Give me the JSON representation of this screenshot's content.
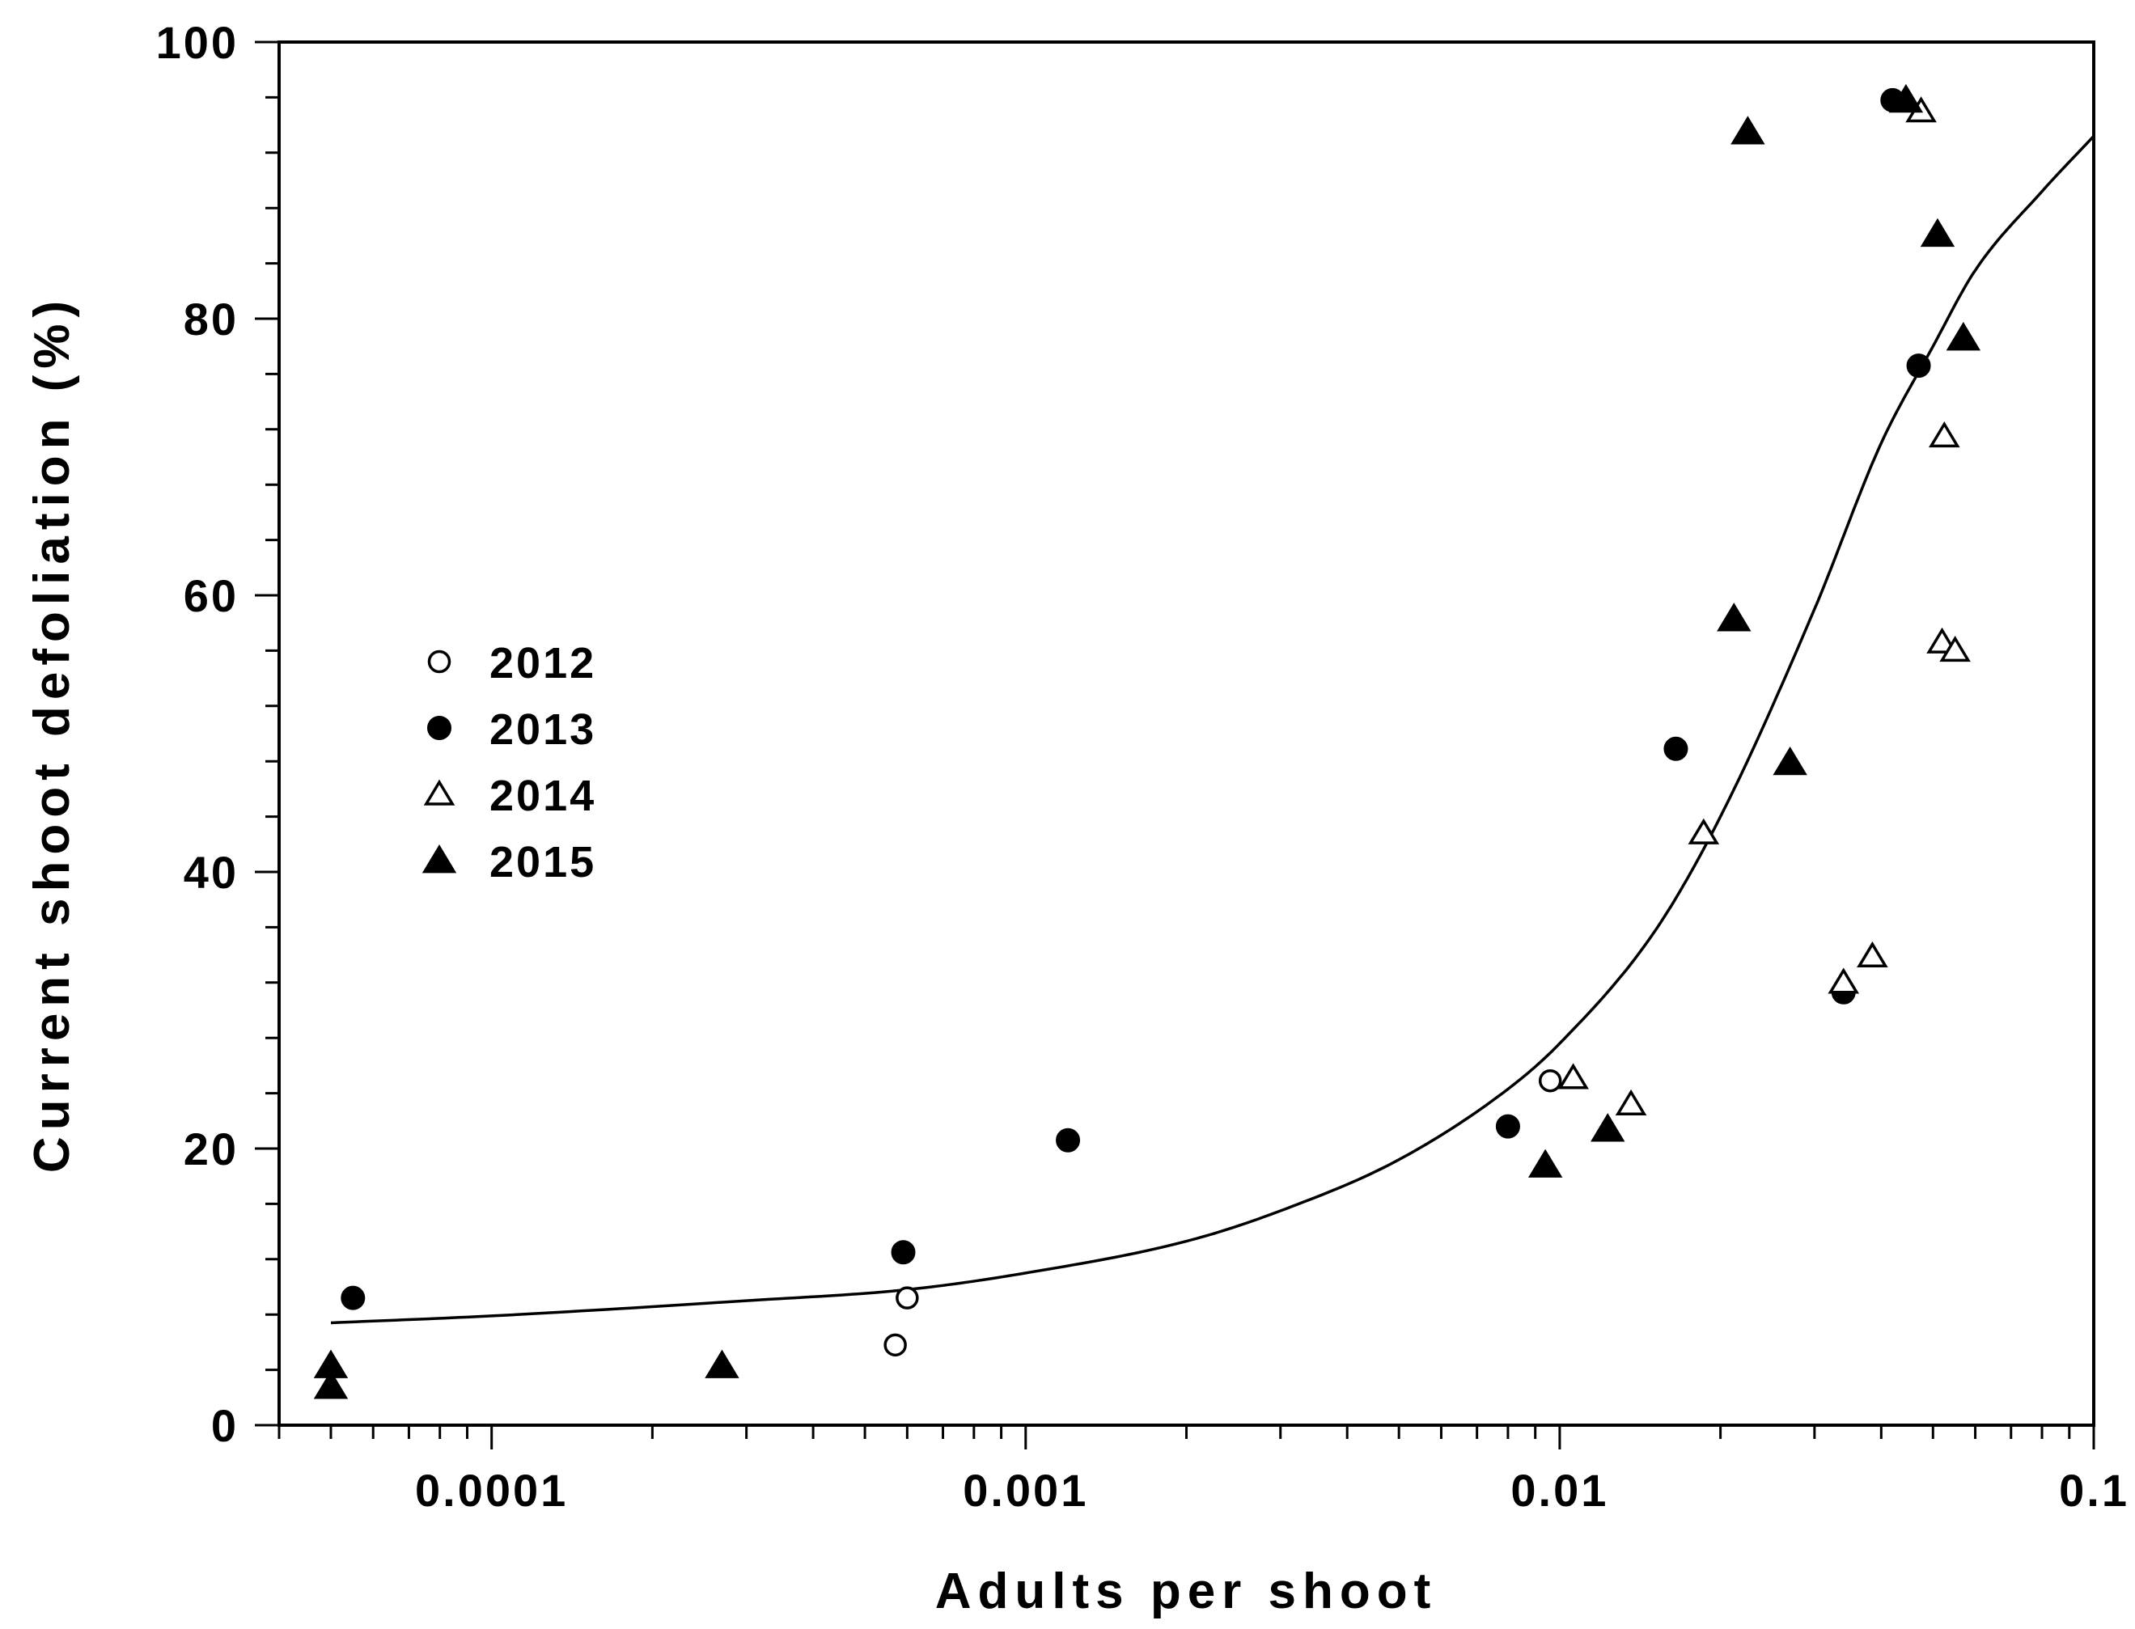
{
  "chart_data": {
    "type": "scatter",
    "title": "",
    "xlabel": "Adults per shoot",
    "ylabel": "Current shoot defoliation (%)",
    "x_scale": "log",
    "xlim": [
      4e-05,
      0.1
    ],
    "ylim": [
      0,
      100
    ],
    "x_ticks": [
      {
        "value": 0.0001,
        "label": "0.0001"
      },
      {
        "value": 0.001,
        "label": "0.001"
      },
      {
        "value": 0.01,
        "label": "0.01"
      },
      {
        "value": 0.1,
        "label": "0.1"
      }
    ],
    "y_ticks": [
      {
        "value": 0,
        "label": "0"
      },
      {
        "value": 20,
        "label": "20"
      },
      {
        "value": 40,
        "label": "40"
      },
      {
        "value": 60,
        "label": "60"
      },
      {
        "value": 80,
        "label": "80"
      },
      {
        "value": 100,
        "label": "100"
      }
    ],
    "grid": false,
    "legend_position": "left-middle",
    "series": [
      {
        "name": "2012",
        "marker": "open-circle",
        "points": [
          [
            0.00057,
            5.8
          ],
          [
            0.0006,
            9.2
          ],
          [
            0.0096,
            24.9
          ]
        ]
      },
      {
        "name": "2013",
        "marker": "filled-circle",
        "points": [
          [
            5.5e-05,
            9.2
          ],
          [
            0.00059,
            12.5
          ],
          [
            0.0012,
            20.6
          ],
          [
            0.008,
            21.6
          ],
          [
            0.0165,
            48.9
          ],
          [
            0.034,
            31.3
          ],
          [
            0.042,
            95.8
          ],
          [
            0.047,
            76.6
          ]
        ]
      },
      {
        "name": "2014",
        "marker": "open-triangle",
        "points": [
          [
            0.0106,
            25.1
          ],
          [
            0.0136,
            23.2
          ],
          [
            0.0186,
            42.8
          ],
          [
            0.034,
            32.0
          ],
          [
            0.0385,
            33.9
          ],
          [
            0.0475,
            95.0
          ],
          [
            0.052,
            56.6
          ],
          [
            0.0525,
            71.5
          ],
          [
            0.055,
            56.0
          ]
        ]
      },
      {
        "name": "2015",
        "marker": "filled-triangle",
        "points": [
          [
            5e-05,
            2.8
          ],
          [
            5e-05,
            4.3
          ],
          [
            0.00027,
            4.3
          ],
          [
            0.0094,
            18.8
          ],
          [
            0.0123,
            21.4
          ],
          [
            0.0212,
            58.3
          ],
          [
            0.0225,
            93.5
          ],
          [
            0.027,
            47.9
          ],
          [
            0.0445,
            95.8
          ],
          [
            0.051,
            86.1
          ],
          [
            0.057,
            78.6
          ]
        ]
      }
    ],
    "fit_curve": {
      "points": [
        [
          5e-05,
          7.4
        ],
        [
          0.0001,
          7.9
        ],
        [
          0.0003,
          9.0
        ],
        [
          0.0006,
          9.8
        ],
        [
          0.001,
          11.0
        ],
        [
          0.002,
          13.3
        ],
        [
          0.003,
          15.5
        ],
        [
          0.005,
          19.2
        ],
        [
          0.008,
          24.3
        ],
        [
          0.01,
          27.6
        ],
        [
          0.015,
          35.6
        ],
        [
          0.02,
          44.0
        ],
        [
          0.03,
          59.0
        ],
        [
          0.04,
          71.0
        ],
        [
          0.05,
          78.0
        ],
        [
          0.06,
          83.5
        ],
        [
          0.08,
          89.2
        ],
        [
          0.1,
          93.2
        ]
      ]
    }
  }
}
